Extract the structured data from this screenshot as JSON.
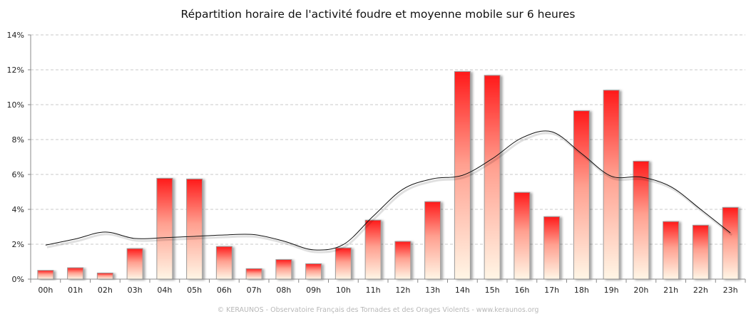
{
  "chart_data": {
    "type": "bar",
    "title": "Répartition horaire de l'activité foudre et moyenne mobile sur 6 heures",
    "categories": [
      "00h",
      "01h",
      "02h",
      "03h",
      "04h",
      "05h",
      "06h",
      "07h",
      "08h",
      "09h",
      "10h",
      "11h",
      "12h",
      "13h",
      "14h",
      "15h",
      "16h",
      "17h",
      "18h",
      "19h",
      "20h",
      "21h",
      "22h",
      "23h"
    ],
    "series": [
      {
        "type": "bar",
        "values": [
          0.5,
          0.65,
          0.35,
          1.75,
          5.78,
          5.74,
          1.87,
          0.6,
          1.12,
          0.88,
          1.79,
          3.38,
          2.16,
          4.44,
          11.9,
          11.68,
          4.97,
          3.58,
          9.65,
          10.83,
          6.76,
          3.3,
          3.09,
          4.11
        ],
        "color_top": "#ff1a1a",
        "color_bottom": "#fff6e6"
      },
      {
        "type": "line",
        "smooth": true,
        "values": [
          1.95,
          2.3,
          2.7,
          2.33,
          2.38,
          2.45,
          2.53,
          2.55,
          2.18,
          1.68,
          1.98,
          3.6,
          5.15,
          5.75,
          5.95,
          6.9,
          8.1,
          8.45,
          7.2,
          5.9,
          5.85,
          5.3,
          4.0,
          2.65
        ],
        "color": "#111111"
      }
    ],
    "ylim": [
      0,
      14
    ],
    "yticks": [
      "0%",
      "2%",
      "4%",
      "6%",
      "8%",
      "10%",
      "12%",
      "14%"
    ],
    "grid": true,
    "legend": "none"
  },
  "footer": "© KERAUNOS - Observatoire Français des Tornades et des Orages Violents - www.keraunos.org"
}
